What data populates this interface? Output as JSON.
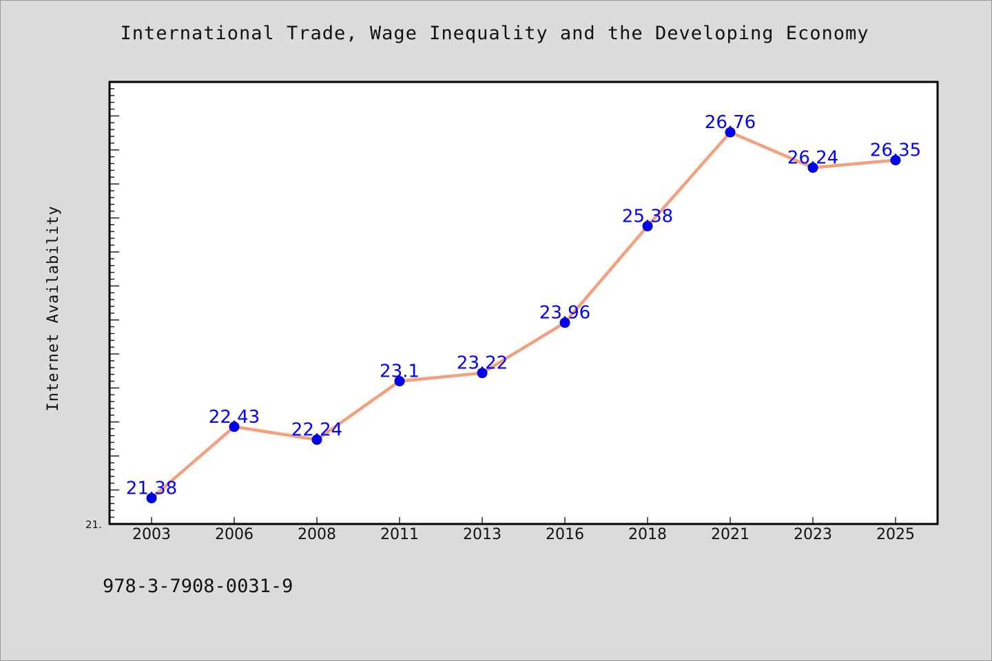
{
  "chart_data": {
    "type": "line",
    "title": "International Trade, Wage Inequality and the Developing Economy",
    "xlabel": "",
    "ylabel": "Internet Availability",
    "categories": [
      "2003",
      "2006",
      "2008",
      "2011",
      "2013",
      "2016",
      "2018",
      "2021",
      "2023",
      "2025"
    ],
    "series": [
      {
        "values": [
          21.38,
          22.43,
          22.24,
          23.1,
          23.22,
          23.96,
          25.38,
          26.76,
          26.24,
          26.35
        ]
      }
    ],
    "data_labels": [
      "21.38",
      "22.43",
      "22.24",
      "23.1",
      "23.22",
      "23.96",
      "25.38",
      "26.76",
      "26.24",
      "26.35"
    ],
    "ylim": [
      21.0,
      27.5
    ],
    "y_tick_labels": [
      "21."
    ],
    "grid": false,
    "legend": "none",
    "colors": {
      "line": "#f4a07e",
      "marker": "#0000ff",
      "data_label": "#0000ff",
      "background": "#dcdcdc",
      "plot_background": "#ffffff"
    }
  },
  "footer": {
    "isbn": "978-3-7908-0031-9"
  }
}
